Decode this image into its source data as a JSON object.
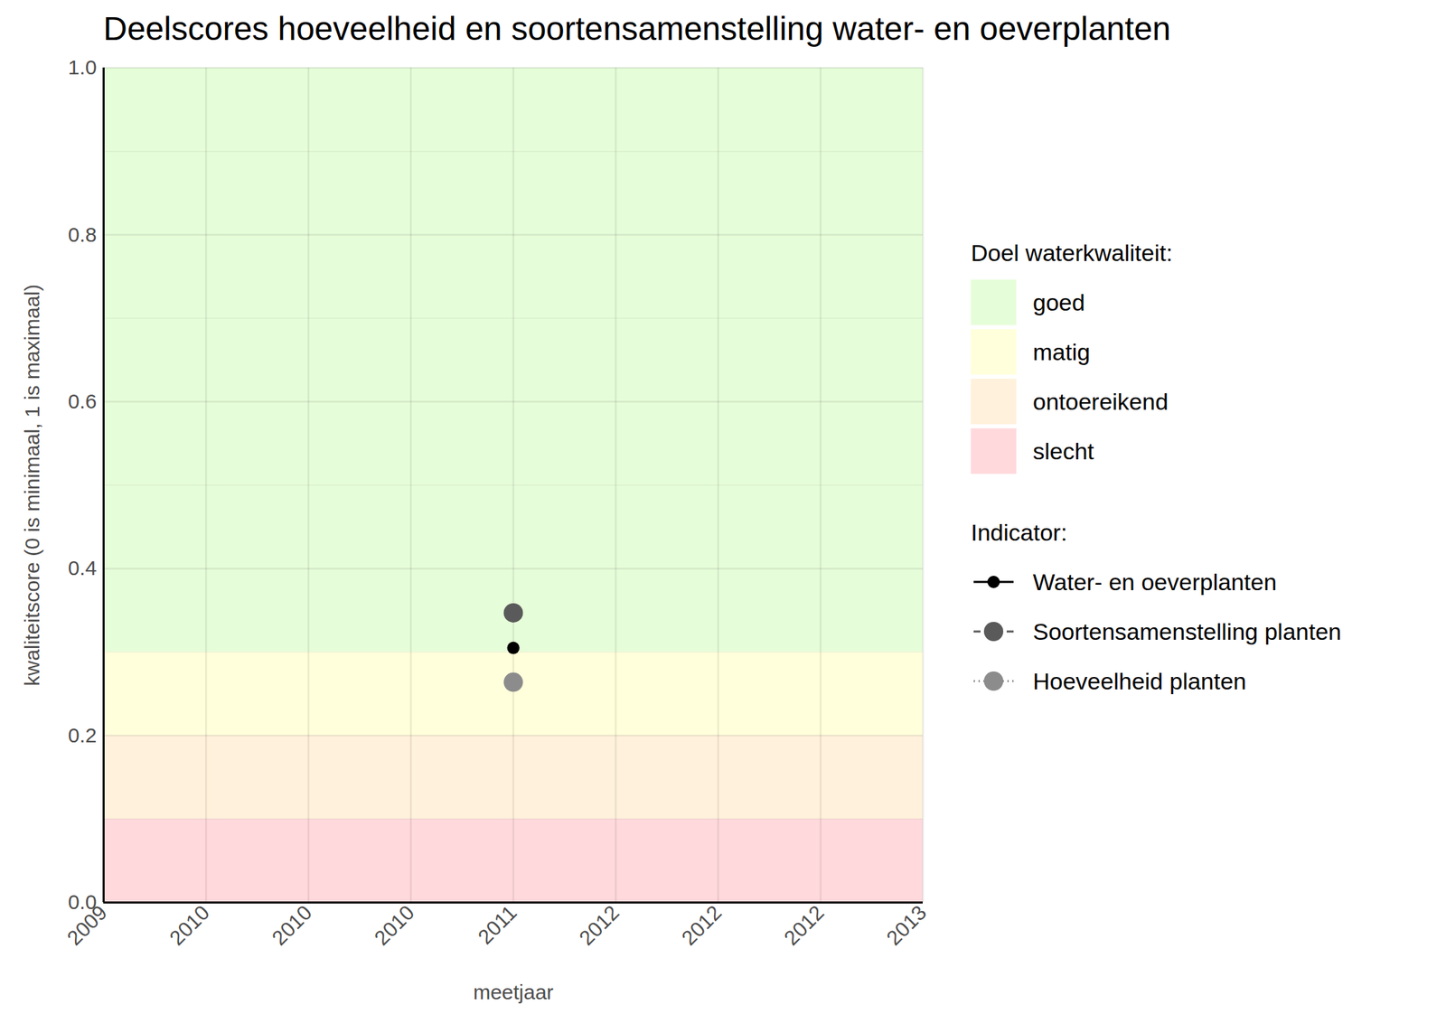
{
  "chart_data": {
    "type": "scatter",
    "title": "Deelscores hoeveelheid en soortensamenstelling water- en oeverplanten",
    "x_label": "meetjaar",
    "y_label": "kwaliteitscore (0 is minimaal, 1 is maximaal)",
    "x": [
      2011
    ],
    "series": [
      {
        "name": "Water- en oeverplanten",
        "color": "#000000",
        "marker": "circle",
        "line_style": "solid",
        "values": [
          0.305
        ]
      },
      {
        "name": "Soortensamenstelling planten",
        "color": "#5a5a5a",
        "marker": "circle",
        "line_style": "dashed",
        "values": [
          0.347
        ]
      },
      {
        "name": "Hoeveelheid planten",
        "color": "#8c8c8c",
        "marker": "circle",
        "line_style": "dotted",
        "values": [
          0.264
        ]
      }
    ],
    "legend_title": "Indicator:",
    "bands_title": "Doel waterkwaliteit:",
    "bands": [
      {
        "name": "goed",
        "from": 0.3,
        "to": 1,
        "color": "#e6fdd9"
      },
      {
        "name": "matig",
        "from": 0.2,
        "to": 0.3,
        "color": "#ffffdb"
      },
      {
        "name": "ontoereikend",
        "from": 0.1,
        "to": 0.2,
        "color": "#fff1db"
      },
      {
        "name": "slecht",
        "from": 0,
        "to": 0.1,
        "color": "#ffd9dc"
      }
    ],
    "xlim": [
      2009,
      2013
    ],
    "xticks": [
      2009,
      {
        "value": 2009.5,
        "label": "2010"
      },
      2010,
      {
        "value": 2010.5,
        "label": "2010"
      },
      2011,
      {
        "value": 2011.5,
        "label": "2012"
      },
      2012,
      {
        "value": 2012.5,
        "label": "2012"
      },
      2013
    ],
    "ylim": [
      0,
      1
    ],
    "yticks": [
      {
        "value": 0,
        "label": "0.0"
      },
      0.2,
      0.4,
      0.6,
      0.8,
      {
        "value": 1,
        "label": "1.0"
      }
    ],
    "grid": true,
    "legend": "right"
  }
}
